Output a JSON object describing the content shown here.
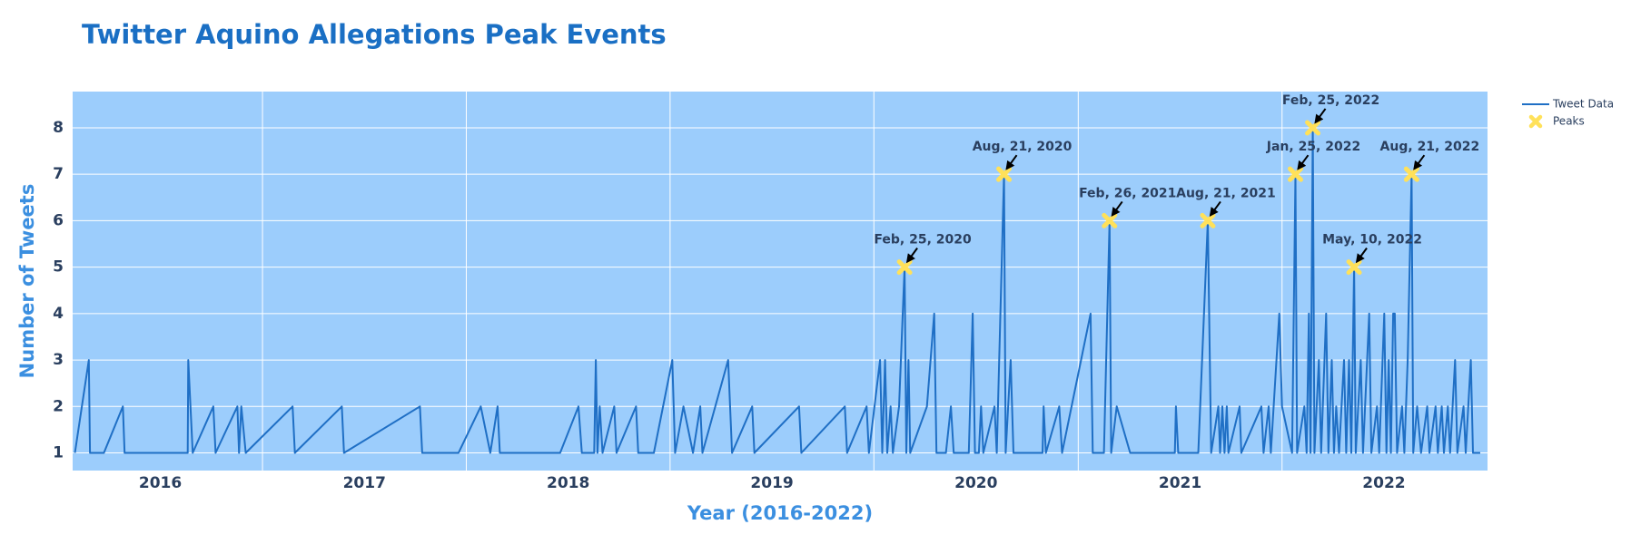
{
  "chart_data": {
    "type": "line",
    "title": "Twitter Aquino Allegations Peak Events",
    "x_label": "Year (2016-2022)",
    "y_label": "Number of Tweets",
    "xlim": [
      "2016-01-27",
      "2023-01-04"
    ],
    "xticks": [
      {
        "value": "2016-01-01",
        "label": "2016"
      },
      {
        "value": "2017-01-01",
        "label": "2017"
      },
      {
        "value": "2018-01-01",
        "label": "2018"
      },
      {
        "value": "2019-01-01",
        "label": "2019"
      },
      {
        "value": "2020-01-01",
        "label": "2020"
      },
      {
        "value": "2021-01-01",
        "label": "2021"
      },
      {
        "value": "2022-01-01",
        "label": "2022"
      }
    ],
    "ylim": [
      0.62,
      8.78
    ],
    "yticks": [
      1,
      2,
      3,
      4,
      5,
      6,
      7,
      8
    ],
    "grid": true,
    "legend": "outside-top-right",
    "series": [
      {
        "name": "Tweet Data",
        "color": "#1f6fc5",
        "x": [
          "2016-01-31",
          "2016-02-25",
          "2016-02-27",
          "2016-03-23",
          "2016-04-26",
          "2016-04-29",
          "2016-08-20",
          "2016-08-21",
          "2016-08-29",
          "2016-10-05",
          "2016-10-09",
          "2016-11-17",
          "2016-11-20",
          "2016-11-24",
          "2016-12-02",
          "2017-02-24",
          "2017-02-28",
          "2017-05-23",
          "2017-05-27",
          "2017-10-10",
          "2017-10-14",
          "2017-12-18",
          "2018-01-27",
          "2018-02-13",
          "2018-02-26",
          "2018-03-02",
          "2018-06-18",
          "2018-07-21",
          "2018-07-27",
          "2018-08-18",
          "2018-08-21",
          "2018-08-24",
          "2018-08-28",
          "2018-09-02",
          "2018-09-23",
          "2018-09-27",
          "2018-11-01",
          "2018-11-05",
          "2018-12-03",
          "2019-01-05",
          "2019-01-10",
          "2019-01-25",
          "2019-02-11",
          "2019-02-24",
          "2019-02-28",
          "2019-04-15",
          "2019-04-22",
          "2019-05-28",
          "2019-06-01",
          "2019-08-20",
          "2019-08-24",
          "2019-11-10",
          "2019-11-14",
          "2019-12-19",
          "2019-12-23",
          "2020-01-12",
          "2020-01-16",
          "2020-01-21",
          "2020-01-25",
          "2020-01-31",
          "2020-02-04",
          "2020-02-15",
          "2020-02-25",
          "2020-02-28",
          "2020-03-03",
          "2020-03-06",
          "2020-04-05",
          "2020-04-18",
          "2020-04-22",
          "2020-05-09",
          "2020-05-18",
          "2020-05-23",
          "2020-06-19",
          "2020-06-26",
          "2020-06-30",
          "2020-07-07",
          "2020-07-11",
          "2020-07-15",
          "2020-08-04",
          "2020-08-08",
          "2020-08-21",
          "2020-08-24",
          "2020-09-02",
          "2020-09-07",
          "2020-10-29",
          "2020-10-31",
          "2020-11-04",
          "2020-11-28",
          "2020-12-03",
          "2021-01-23",
          "2021-01-27",
          "2021-02-16",
          "2021-02-26",
          "2021-03-01",
          "2021-03-11",
          "2021-04-04",
          "2021-06-23",
          "2021-06-25",
          "2021-06-29",
          "2021-08-04",
          "2021-08-21",
          "2021-08-27",
          "2021-09-09",
          "2021-09-12",
          "2021-09-16",
          "2021-09-20",
          "2021-09-24",
          "2021-09-27",
          "2021-10-17",
          "2021-10-20",
          "2021-11-25",
          "2021-11-29",
          "2021-12-08",
          "2021-12-12",
          "2021-12-27",
          "2022-01-01",
          "2022-01-19",
          "2022-01-25",
          "2022-01-28",
          "2022-02-10",
          "2022-02-14",
          "2022-02-18",
          "2022-02-21",
          "2022-02-25",
          "2022-02-28",
          "2022-03-08",
          "2022-03-12",
          "2022-03-21",
          "2022-03-25",
          "2022-03-31",
          "2022-04-04",
          "2022-04-08",
          "2022-04-13",
          "2022-04-22",
          "2022-04-26",
          "2022-05-01",
          "2022-05-05",
          "2022-05-10",
          "2022-05-13",
          "2022-05-22",
          "2022-05-26",
          "2022-06-06",
          "2022-06-10",
          "2022-06-20",
          "2022-06-24",
          "2022-07-03",
          "2022-07-07",
          "2022-07-11",
          "2022-07-15",
          "2022-07-19",
          "2022-07-22",
          "2022-07-26",
          "2022-08-04",
          "2022-08-08",
          "2022-08-14",
          "2022-08-21",
          "2022-08-24",
          "2022-08-31",
          "2022-09-07",
          "2022-09-18",
          "2022-09-22",
          "2022-10-03",
          "2022-10-07",
          "2022-10-14",
          "2022-10-18",
          "2022-10-25",
          "2022-10-29",
          "2022-11-07",
          "2022-11-11",
          "2022-11-22",
          "2022-11-26",
          "2022-12-05",
          "2022-12-09",
          "2022-12-22"
        ],
        "values": [
          1,
          3,
          1,
          1,
          2,
          1,
          1,
          3,
          1,
          2,
          1,
          2,
          1,
          2,
          1,
          2,
          1,
          2,
          1,
          2,
          1,
          1,
          2,
          1,
          2,
          1,
          1,
          2,
          1,
          1,
          3,
          1,
          2,
          1,
          2,
          1,
          2,
          1,
          1,
          3,
          1,
          2,
          1,
          2,
          1,
          3,
          1,
          2,
          1,
          2,
          1,
          2,
          1,
          2,
          1,
          3,
          1,
          3,
          1,
          2,
          1,
          2,
          5,
          1,
          3,
          1,
          2,
          4,
          1,
          1,
          2,
          1,
          1,
          4,
          1,
          1,
          2,
          1,
          2,
          1,
          7,
          1,
          3,
          1,
          1,
          2,
          1,
          2,
          1,
          4,
          1,
          1,
          6,
          1,
          2,
          1,
          1,
          2,
          1,
          1,
          6,
          1,
          2,
          1,
          2,
          1,
          2,
          1,
          2,
          1,
          2,
          1,
          2,
          1,
          4,
          2,
          1,
          7,
          1,
          2,
          1,
          4,
          1,
          8,
          1,
          3,
          1,
          4,
          1,
          3,
          1,
          2,
          1,
          3,
          1,
          3,
          1,
          5,
          1,
          3,
          1,
          4,
          1,
          2,
          1,
          4,
          1,
          3,
          1,
          4,
          4,
          1,
          2,
          1,
          3,
          7,
          1,
          2,
          1,
          2,
          1,
          2,
          1,
          2,
          1,
          2,
          1,
          3,
          1,
          2,
          1,
          3,
          1,
          1
        ]
      },
      {
        "name": "Peaks",
        "color": "#ffe15a",
        "marker": "x",
        "x": [
          "2020-02-25",
          "2020-08-21",
          "2021-02-26",
          "2021-08-21",
          "2022-01-25",
          "2022-02-25",
          "2022-05-10",
          "2022-08-21"
        ],
        "values": [
          5,
          7,
          6,
          6,
          7,
          8,
          5,
          7
        ],
        "annotations": [
          "Feb, 25, 2020",
          "Aug, 21, 2020",
          "Feb, 26, 2021",
          "Aug, 21, 2021",
          "Jan, 25, 2022",
          "Feb, 25, 2022",
          "May, 10, 2022",
          "Aug, 21, 2022"
        ]
      }
    ]
  }
}
